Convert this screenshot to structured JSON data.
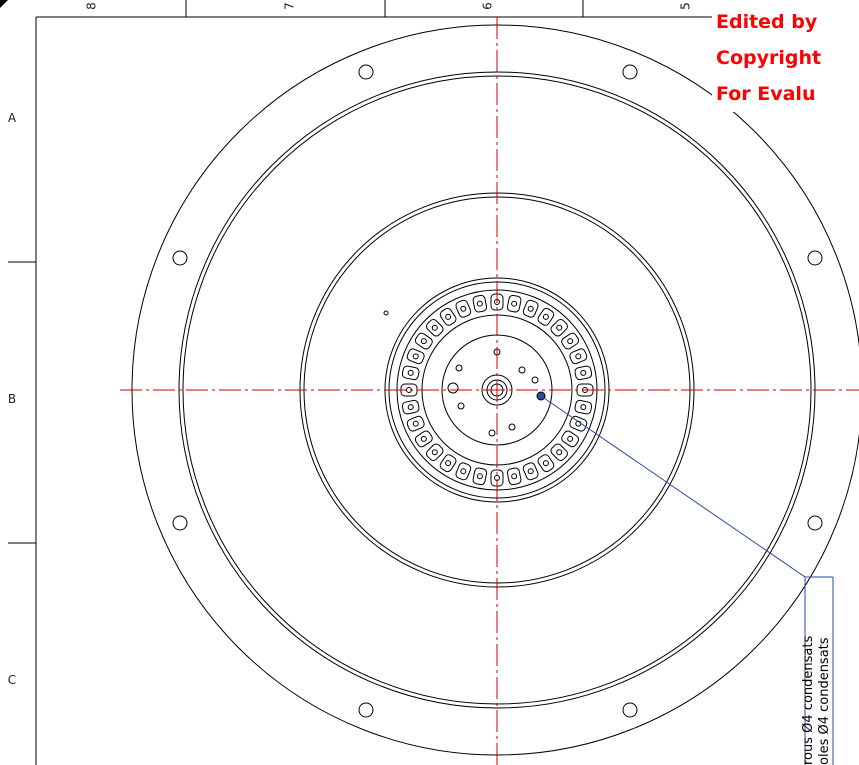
{
  "columns": [
    "8",
    "7",
    "6",
    "5"
  ],
  "rows": [
    "A",
    "B",
    "C"
  ],
  "watermark": [
    "Edited by",
    "Copyright",
    "For Evalu"
  ],
  "notes": [
    "rous Ø4 condensats",
    "oles Ø4 condensats"
  ]
}
